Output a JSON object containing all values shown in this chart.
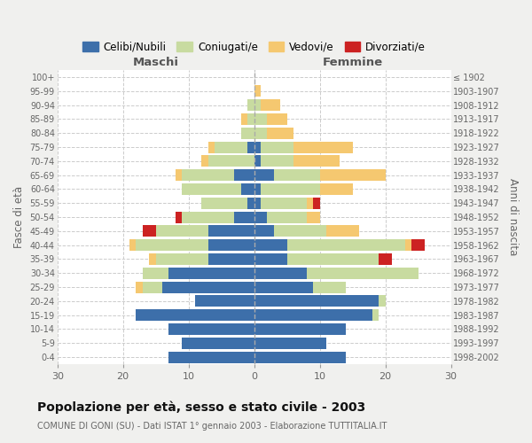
{
  "age_groups": [
    "0-4",
    "5-9",
    "10-14",
    "15-19",
    "20-24",
    "25-29",
    "30-34",
    "35-39",
    "40-44",
    "45-49",
    "50-54",
    "55-59",
    "60-64",
    "65-69",
    "70-74",
    "75-79",
    "80-84",
    "85-89",
    "90-94",
    "95-99",
    "100+"
  ],
  "birth_years": [
    "1998-2002",
    "1993-1997",
    "1988-1992",
    "1983-1987",
    "1978-1982",
    "1973-1977",
    "1968-1972",
    "1963-1967",
    "1958-1962",
    "1953-1957",
    "1948-1952",
    "1943-1947",
    "1938-1942",
    "1933-1937",
    "1928-1932",
    "1923-1927",
    "1918-1922",
    "1913-1917",
    "1908-1912",
    "1903-1907",
    "≤ 1902"
  ],
  "male_celibi": [
    13,
    11,
    13,
    18,
    9,
    14,
    13,
    7,
    7,
    7,
    3,
    1,
    2,
    3,
    0,
    1,
    0,
    0,
    0,
    0,
    0
  ],
  "male_coniugati": [
    0,
    0,
    0,
    0,
    0,
    3,
    4,
    8,
    11,
    8,
    8,
    7,
    9,
    8,
    7,
    5,
    2,
    1,
    1,
    0,
    0
  ],
  "male_vedovi": [
    0,
    0,
    0,
    0,
    0,
    1,
    0,
    1,
    1,
    0,
    0,
    0,
    0,
    1,
    1,
    1,
    0,
    1,
    0,
    0,
    0
  ],
  "male_divorziati": [
    0,
    0,
    0,
    0,
    0,
    0,
    0,
    0,
    0,
    2,
    1,
    0,
    0,
    0,
    0,
    0,
    0,
    0,
    0,
    0,
    0
  ],
  "female_nubili": [
    14,
    11,
    14,
    18,
    19,
    9,
    8,
    5,
    5,
    3,
    2,
    1,
    1,
    3,
    1,
    1,
    0,
    0,
    0,
    0,
    0
  ],
  "female_coniugate": [
    0,
    0,
    0,
    1,
    1,
    5,
    17,
    14,
    18,
    8,
    6,
    7,
    9,
    7,
    5,
    5,
    2,
    2,
    1,
    0,
    0
  ],
  "female_vedove": [
    0,
    0,
    0,
    0,
    0,
    0,
    0,
    0,
    1,
    5,
    2,
    1,
    5,
    10,
    7,
    9,
    4,
    3,
    3,
    1,
    0
  ],
  "female_divorziate": [
    0,
    0,
    0,
    0,
    0,
    0,
    0,
    2,
    2,
    0,
    0,
    1,
    0,
    0,
    0,
    0,
    0,
    0,
    0,
    0,
    0
  ],
  "color_celibi": "#3d6faa",
  "color_coniugati": "#c8dba0",
  "color_vedovi": "#f5c870",
  "color_divorziati": "#cc2222",
  "title": "Popolazione per età, sesso e stato civile - 2003",
  "subtitle": "COMUNE DI GONI (SU) - Dati ISTAT 1° gennaio 2003 - Elaborazione TUTTITALIA.IT",
  "label_maschi": "Maschi",
  "label_femmine": "Femmine",
  "ylabel_left": "Fasce di età",
  "ylabel_right": "Anni di nascita",
  "legend_labels": [
    "Celibi/Nubili",
    "Coniugati/e",
    "Vedovi/e",
    "Divorziati/e"
  ],
  "xlim": 30,
  "bg_color": "#f0f0ee",
  "plot_bg": "#ffffff"
}
